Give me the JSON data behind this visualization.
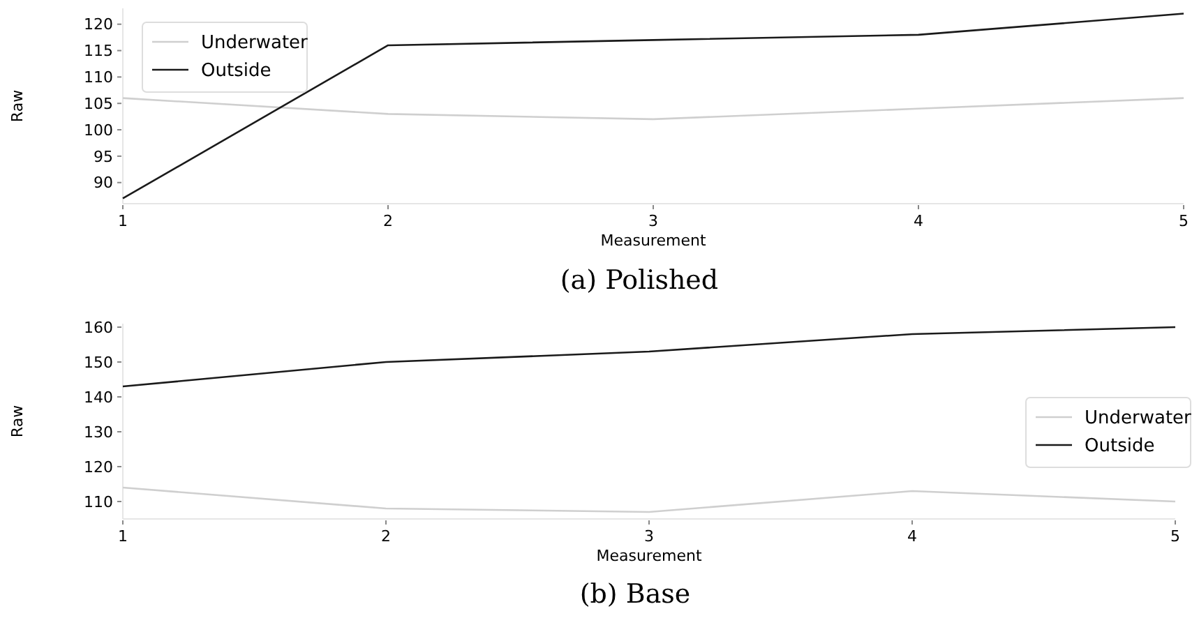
{
  "chart_data": [
    {
      "type": "line",
      "title": "(a) Polished",
      "xlabel": "Measurement",
      "ylabel": "Raw",
      "x": [
        1,
        2,
        3,
        4,
        5
      ],
      "xlim": [
        1,
        5
      ],
      "xticks": [
        1,
        2,
        3,
        4,
        5
      ],
      "ylim": [
        86,
        123
      ],
      "yticks": [
        90,
        95,
        100,
        105,
        110,
        115,
        120
      ],
      "legend": "top left",
      "grid": false,
      "series": [
        {
          "name": "Underwater",
          "color": "#cfcfcf",
          "values": [
            106,
            103,
            102,
            104,
            106
          ]
        },
        {
          "name": "Outside",
          "color": "#1a1a1a",
          "values": [
            87,
            116,
            117,
            118,
            122
          ]
        }
      ]
    },
    {
      "type": "line",
      "title": "(b) Base",
      "xlabel": "Measurement",
      "ylabel": "Raw",
      "x": [
        1,
        2,
        3,
        4,
        5
      ],
      "xlim": [
        1,
        5
      ],
      "xticks": [
        1,
        2,
        3,
        4,
        5
      ],
      "ylim": [
        105,
        161
      ],
      "yticks": [
        110,
        120,
        130,
        140,
        150,
        160
      ],
      "legend": "right",
      "grid": false,
      "series": [
        {
          "name": "Underwater",
          "color": "#cfcfcf",
          "values": [
            114,
            108,
            107,
            113,
            110
          ]
        },
        {
          "name": "Outside",
          "color": "#1a1a1a",
          "values": [
            143,
            150,
            153,
            158,
            160
          ]
        }
      ]
    }
  ]
}
